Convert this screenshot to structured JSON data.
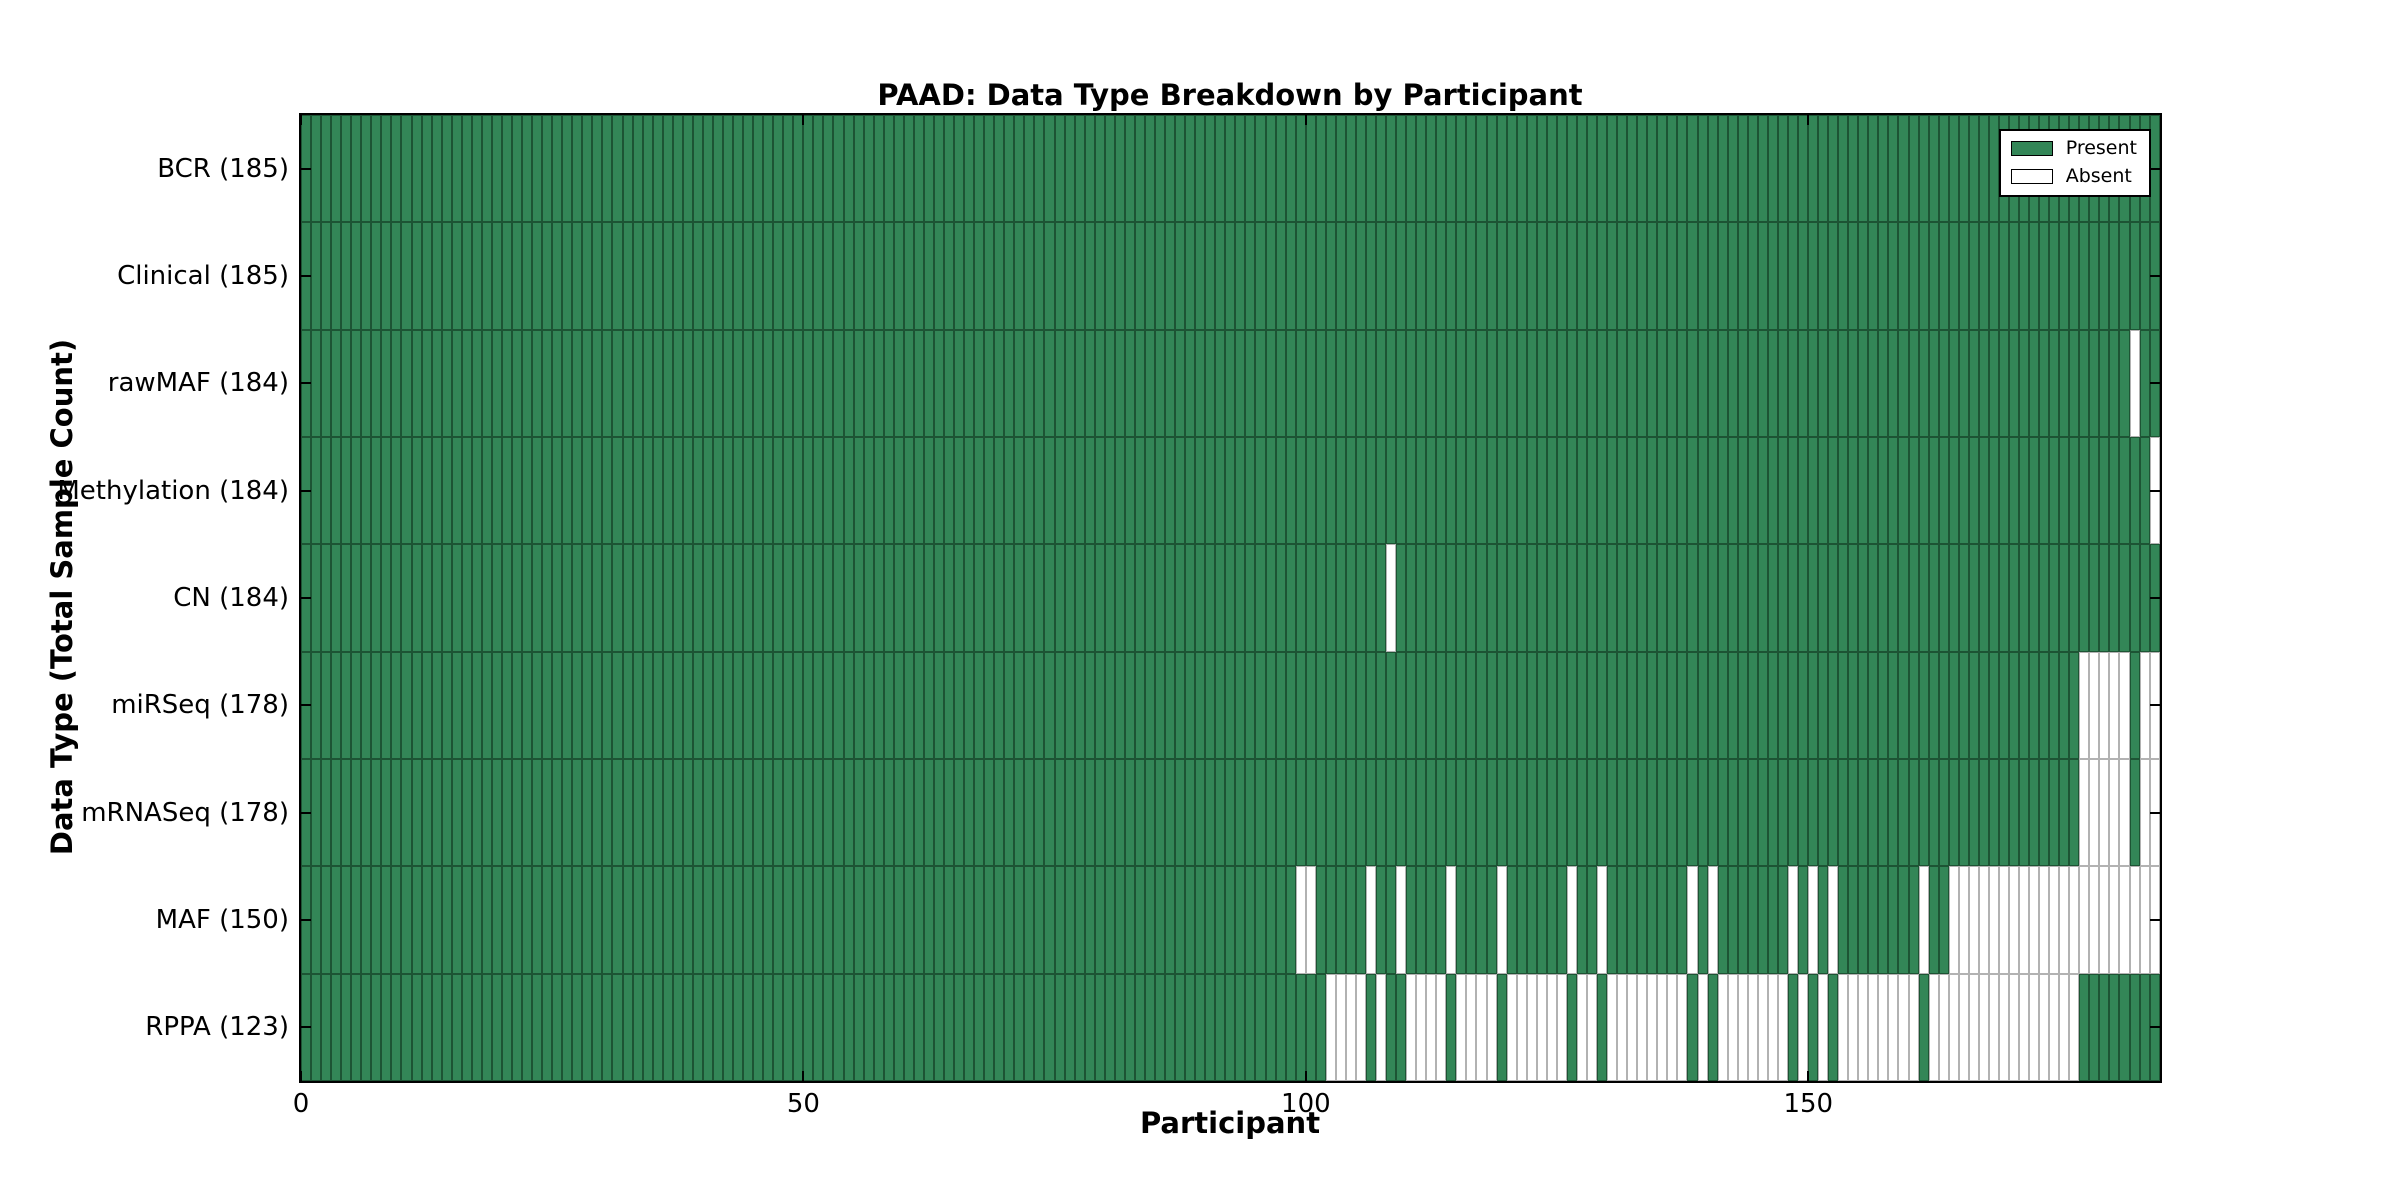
{
  "title": "PAAD: Data Type Breakdown by Participant",
  "chart_data": {
    "type": "heatmap",
    "title": "PAAD: Data Type Breakdown by Participant",
    "xlabel": "Participant",
    "ylabel": "Data Type (Total Sample Count)",
    "x_ticks": [
      0,
      50,
      100,
      150
    ],
    "x_range": [
      0,
      185
    ],
    "n_participants": 185,
    "grid": false,
    "legend_position": "upper right",
    "legend": [
      {
        "label": "Present",
        "color": "#338657"
      },
      {
        "label": "Absent",
        "color": "#ffffff"
      }
    ],
    "colors": {
      "present_fill": "#338657",
      "present_edge": "#1d5434",
      "absent_fill": "#ffffff",
      "absent_edge": "#b2b2b2",
      "axis": "#000000"
    },
    "rows": [
      {
        "data_type": "BCR",
        "label": "BCR (185)",
        "total": 185,
        "absent_participants": []
      },
      {
        "data_type": "Clinical",
        "label": "Clinical (185)",
        "total": 185,
        "absent_participants": []
      },
      {
        "data_type": "rawMAF",
        "label": "rawMAF (184)",
        "total": 184,
        "absent_participants": [
          182
        ]
      },
      {
        "data_type": "Methylation",
        "label": "Methylation (184)",
        "total": 184,
        "absent_participants": [
          184
        ]
      },
      {
        "data_type": "CN",
        "label": "CN (184)",
        "total": 184,
        "absent_participants": [
          108
        ]
      },
      {
        "data_type": "miRSeq",
        "label": "miRSeq (178)",
        "total": 178,
        "absent_participants": [
          177,
          178,
          179,
          180,
          181,
          183,
          184
        ]
      },
      {
        "data_type": "mRNASeq",
        "label": "mRNASeq (178)",
        "total": 178,
        "absent_participants": [
          177,
          178,
          179,
          180,
          181,
          183,
          184
        ]
      },
      {
        "data_type": "MAF",
        "label": "MAF (150)",
        "total": 150,
        "absent_participants": [
          99,
          100,
          106,
          109,
          114,
          119,
          126,
          129,
          138,
          140,
          148,
          150,
          152,
          161,
          164,
          165,
          166,
          167,
          168,
          169,
          170,
          171,
          172,
          173,
          174,
          175,
          176,
          177,
          178,
          179,
          180,
          181,
          182,
          183,
          184
        ]
      },
      {
        "data_type": "RPPA",
        "label": "RPPA (123)",
        "total": 123,
        "absent_participants": [
          102,
          103,
          104,
          105,
          107,
          110,
          111,
          112,
          113,
          115,
          116,
          117,
          118,
          120,
          121,
          122,
          123,
          124,
          125,
          127,
          128,
          130,
          131,
          132,
          133,
          134,
          135,
          136,
          137,
          139,
          141,
          142,
          143,
          144,
          145,
          146,
          147,
          149,
          151,
          153,
          154,
          155,
          156,
          157,
          158,
          159,
          160,
          162,
          163,
          164,
          165,
          166,
          167,
          168,
          169,
          170,
          171,
          172,
          173,
          174,
          175,
          176
        ]
      }
    ]
  }
}
